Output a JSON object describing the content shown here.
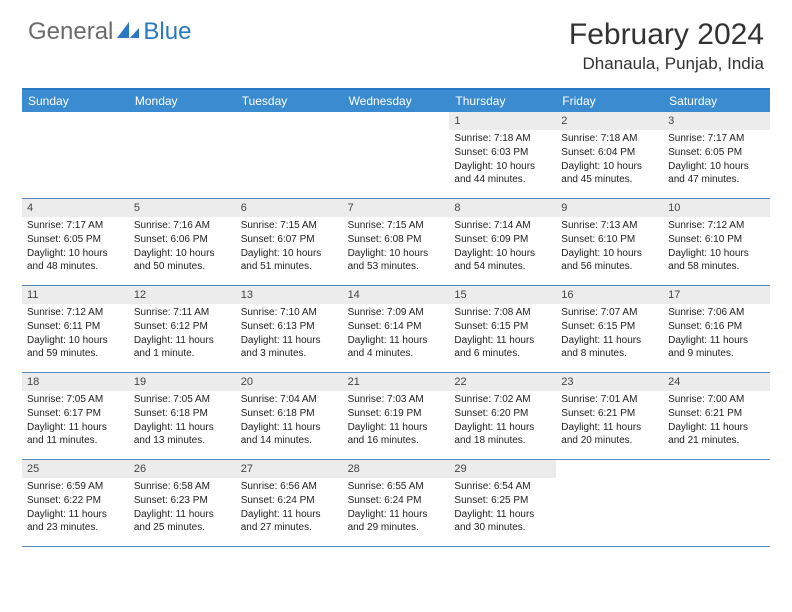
{
  "logo": {
    "gray": "General",
    "blue": "Blue"
  },
  "title": "February 2024",
  "location": "Dhanaula, Punjab, India",
  "colors": {
    "header_bg": "#3a8bd0",
    "header_border": "#2b78c2",
    "week_border": "#5a8bb8",
    "daynum_bg": "#ececec",
    "logo_gray": "#6b6b6b",
    "logo_blue": "#2b78c2"
  },
  "dow": [
    "Sunday",
    "Monday",
    "Tuesday",
    "Wednesday",
    "Thursday",
    "Friday",
    "Saturday"
  ],
  "weeks": [
    [
      {
        "n": "",
        "sr": "",
        "ss": "",
        "dl": ""
      },
      {
        "n": "",
        "sr": "",
        "ss": "",
        "dl": ""
      },
      {
        "n": "",
        "sr": "",
        "ss": "",
        "dl": ""
      },
      {
        "n": "",
        "sr": "",
        "ss": "",
        "dl": ""
      },
      {
        "n": "1",
        "sr": "Sunrise: 7:18 AM",
        "ss": "Sunset: 6:03 PM",
        "dl": "Daylight: 10 hours and 44 minutes."
      },
      {
        "n": "2",
        "sr": "Sunrise: 7:18 AM",
        "ss": "Sunset: 6:04 PM",
        "dl": "Daylight: 10 hours and 45 minutes."
      },
      {
        "n": "3",
        "sr": "Sunrise: 7:17 AM",
        "ss": "Sunset: 6:05 PM",
        "dl": "Daylight: 10 hours and 47 minutes."
      }
    ],
    [
      {
        "n": "4",
        "sr": "Sunrise: 7:17 AM",
        "ss": "Sunset: 6:05 PM",
        "dl": "Daylight: 10 hours and 48 minutes."
      },
      {
        "n": "5",
        "sr": "Sunrise: 7:16 AM",
        "ss": "Sunset: 6:06 PM",
        "dl": "Daylight: 10 hours and 50 minutes."
      },
      {
        "n": "6",
        "sr": "Sunrise: 7:15 AM",
        "ss": "Sunset: 6:07 PM",
        "dl": "Daylight: 10 hours and 51 minutes."
      },
      {
        "n": "7",
        "sr": "Sunrise: 7:15 AM",
        "ss": "Sunset: 6:08 PM",
        "dl": "Daylight: 10 hours and 53 minutes."
      },
      {
        "n": "8",
        "sr": "Sunrise: 7:14 AM",
        "ss": "Sunset: 6:09 PM",
        "dl": "Daylight: 10 hours and 54 minutes."
      },
      {
        "n": "9",
        "sr": "Sunrise: 7:13 AM",
        "ss": "Sunset: 6:10 PM",
        "dl": "Daylight: 10 hours and 56 minutes."
      },
      {
        "n": "10",
        "sr": "Sunrise: 7:12 AM",
        "ss": "Sunset: 6:10 PM",
        "dl": "Daylight: 10 hours and 58 minutes."
      }
    ],
    [
      {
        "n": "11",
        "sr": "Sunrise: 7:12 AM",
        "ss": "Sunset: 6:11 PM",
        "dl": "Daylight: 10 hours and 59 minutes."
      },
      {
        "n": "12",
        "sr": "Sunrise: 7:11 AM",
        "ss": "Sunset: 6:12 PM",
        "dl": "Daylight: 11 hours and 1 minute."
      },
      {
        "n": "13",
        "sr": "Sunrise: 7:10 AM",
        "ss": "Sunset: 6:13 PM",
        "dl": "Daylight: 11 hours and 3 minutes."
      },
      {
        "n": "14",
        "sr": "Sunrise: 7:09 AM",
        "ss": "Sunset: 6:14 PM",
        "dl": "Daylight: 11 hours and 4 minutes."
      },
      {
        "n": "15",
        "sr": "Sunrise: 7:08 AM",
        "ss": "Sunset: 6:15 PM",
        "dl": "Daylight: 11 hours and 6 minutes."
      },
      {
        "n": "16",
        "sr": "Sunrise: 7:07 AM",
        "ss": "Sunset: 6:15 PM",
        "dl": "Daylight: 11 hours and 8 minutes."
      },
      {
        "n": "17",
        "sr": "Sunrise: 7:06 AM",
        "ss": "Sunset: 6:16 PM",
        "dl": "Daylight: 11 hours and 9 minutes."
      }
    ],
    [
      {
        "n": "18",
        "sr": "Sunrise: 7:05 AM",
        "ss": "Sunset: 6:17 PM",
        "dl": "Daylight: 11 hours and 11 minutes."
      },
      {
        "n": "19",
        "sr": "Sunrise: 7:05 AM",
        "ss": "Sunset: 6:18 PM",
        "dl": "Daylight: 11 hours and 13 minutes."
      },
      {
        "n": "20",
        "sr": "Sunrise: 7:04 AM",
        "ss": "Sunset: 6:18 PM",
        "dl": "Daylight: 11 hours and 14 minutes."
      },
      {
        "n": "21",
        "sr": "Sunrise: 7:03 AM",
        "ss": "Sunset: 6:19 PM",
        "dl": "Daylight: 11 hours and 16 minutes."
      },
      {
        "n": "22",
        "sr": "Sunrise: 7:02 AM",
        "ss": "Sunset: 6:20 PM",
        "dl": "Daylight: 11 hours and 18 minutes."
      },
      {
        "n": "23",
        "sr": "Sunrise: 7:01 AM",
        "ss": "Sunset: 6:21 PM",
        "dl": "Daylight: 11 hours and 20 minutes."
      },
      {
        "n": "24",
        "sr": "Sunrise: 7:00 AM",
        "ss": "Sunset: 6:21 PM",
        "dl": "Daylight: 11 hours and 21 minutes."
      }
    ],
    [
      {
        "n": "25",
        "sr": "Sunrise: 6:59 AM",
        "ss": "Sunset: 6:22 PM",
        "dl": "Daylight: 11 hours and 23 minutes."
      },
      {
        "n": "26",
        "sr": "Sunrise: 6:58 AM",
        "ss": "Sunset: 6:23 PM",
        "dl": "Daylight: 11 hours and 25 minutes."
      },
      {
        "n": "27",
        "sr": "Sunrise: 6:56 AM",
        "ss": "Sunset: 6:24 PM",
        "dl": "Daylight: 11 hours and 27 minutes."
      },
      {
        "n": "28",
        "sr": "Sunrise: 6:55 AM",
        "ss": "Sunset: 6:24 PM",
        "dl": "Daylight: 11 hours and 29 minutes."
      },
      {
        "n": "29",
        "sr": "Sunrise: 6:54 AM",
        "ss": "Sunset: 6:25 PM",
        "dl": "Daylight: 11 hours and 30 minutes."
      },
      {
        "n": "",
        "sr": "",
        "ss": "",
        "dl": ""
      },
      {
        "n": "",
        "sr": "",
        "ss": "",
        "dl": ""
      }
    ]
  ]
}
